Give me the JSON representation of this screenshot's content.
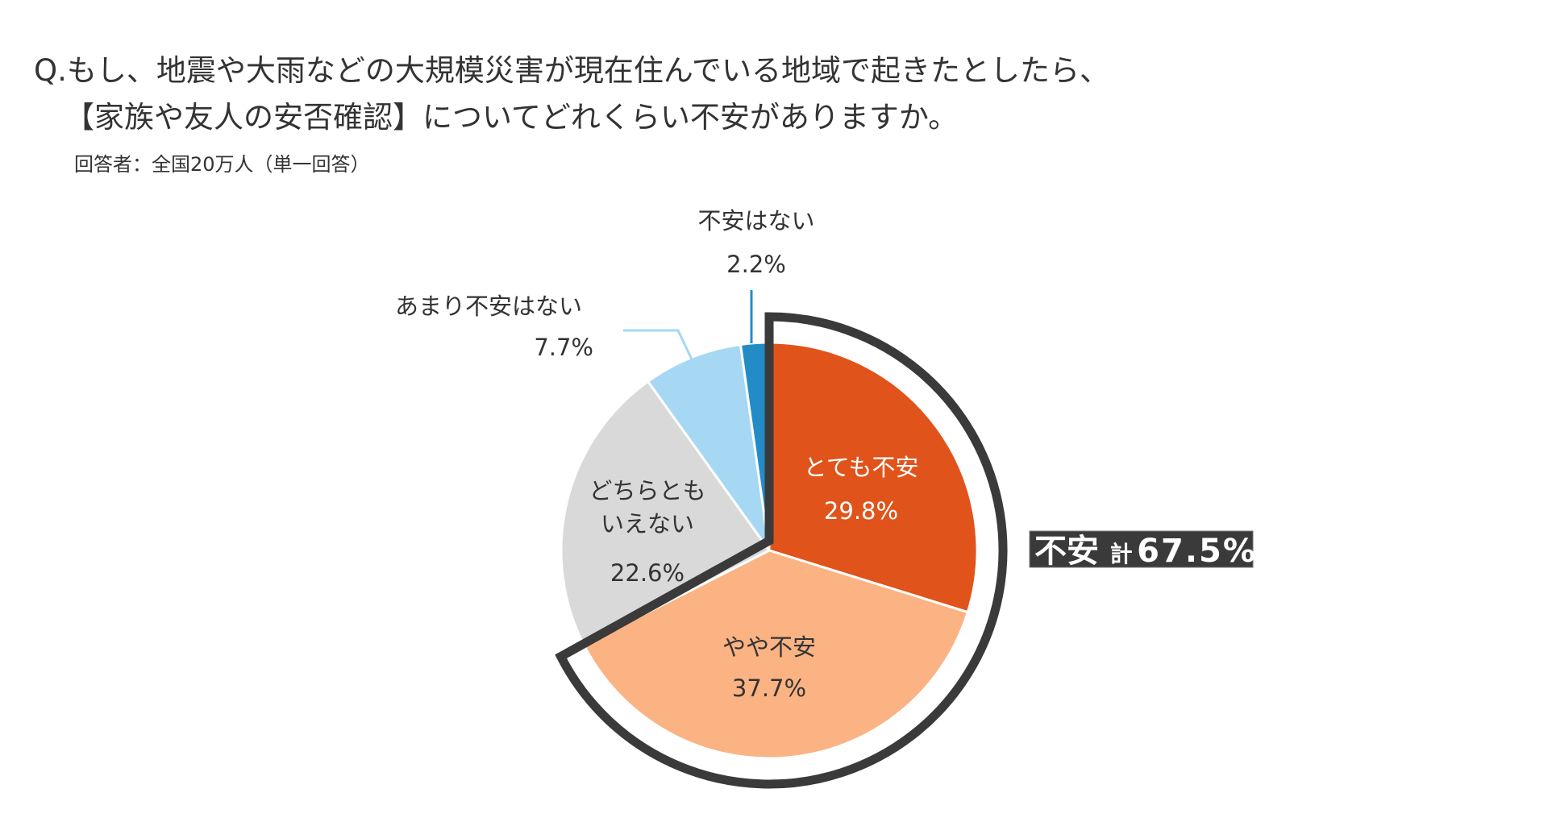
{
  "chart_data": {
    "type": "pie",
    "title_line1": "Q.もし、地震や大雨などの大規模災害が現在住んでいる地域で起きたとしたら、",
    "title_line2": "【家族や友人の安否確認】についてどれくらい不安がありますか。",
    "subtitle": "回答者：全国20万人（単一回答）",
    "slices": [
      {
        "label": "とても不安",
        "label_lines": [
          "とても不安"
        ],
        "value": 29.8,
        "value_text": "29.8%",
        "color": "#E0531B"
      },
      {
        "label": "やや不安",
        "label_lines": [
          "やや不安"
        ],
        "value": 37.7,
        "value_text": "37.7%",
        "color": "#FBB383"
      },
      {
        "label": "どちらともいえない",
        "label_lines": [
          "どちらとも",
          "いえない"
        ],
        "value": 22.6,
        "value_text": "22.6%",
        "color": "#D9D9D9"
      },
      {
        "label": "あまり不安はない",
        "label_lines": [
          "あまり不安はない"
        ],
        "value": 7.7,
        "value_text": "7.7%",
        "color": "#A6D8F4"
      },
      {
        "label": "不安はない",
        "label_lines": [
          "不安はない"
        ],
        "value": 2.2,
        "value_text": "2.2%",
        "color": "#238CC7"
      }
    ],
    "annotation": {
      "main": "不安",
      "prefix": "計",
      "value": "67.5%",
      "covers": [
        "とても不安",
        "やや不安"
      ],
      "color": "#3A3A3A"
    }
  }
}
